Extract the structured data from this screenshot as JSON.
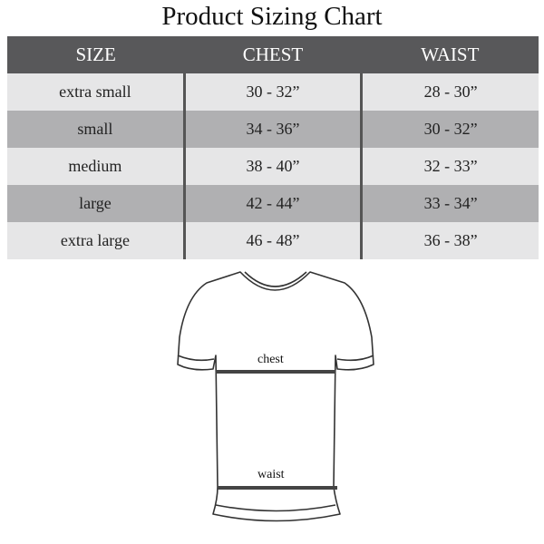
{
  "title": "Product Sizing Chart",
  "table": {
    "headers": [
      "SIZE",
      "CHEST",
      "WAIST"
    ],
    "rows": [
      [
        "extra small",
        "30 - 32”",
        "28 - 30”"
      ],
      [
        "small",
        "34 - 36”",
        "30 - 32”"
      ],
      [
        "medium",
        "38 - 40”",
        "32 - 33”"
      ],
      [
        "large",
        "42 - 44”",
        "33 - 34”"
      ],
      [
        "extra large",
        "46 - 48”",
        "36 - 38”"
      ]
    ]
  },
  "diagram": {
    "chest_label": "chest",
    "waist_label": "waist"
  },
  "colors": {
    "header_bg": "#58585a",
    "row_light": "#e6e6e7",
    "row_dark": "#b0b0b2"
  }
}
